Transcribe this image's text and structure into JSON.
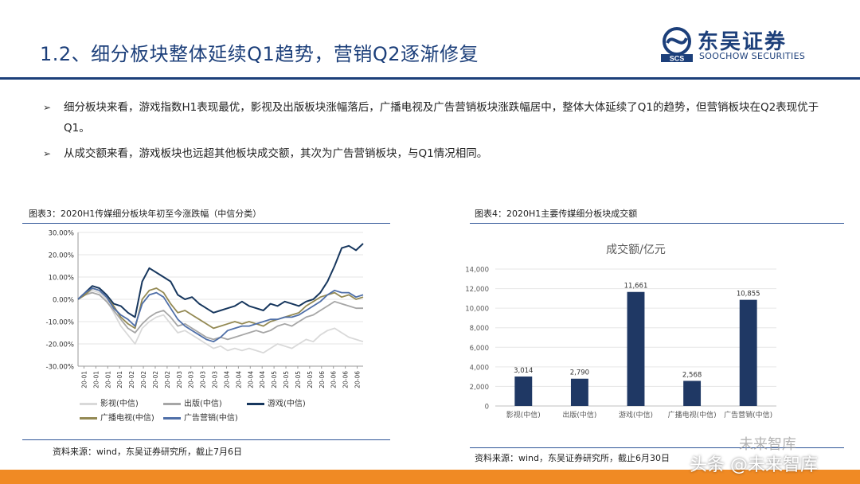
{
  "header": {
    "title": "1.2、细分板块整体延续Q1趋势，营销Q2逐渐修复",
    "logo_cn": "东吴证券",
    "logo_en": "SOOCHOW SECURITIES",
    "logo_mark": "SCS",
    "brand_color": "#1c3f7a"
  },
  "bullets": [
    {
      "icon": "arrow-bullet-icon",
      "text": "细分板块来看，游戏指数H1表现最优，影视及出版板块涨幅落后，广播电视及广告营销板块涨跌幅居中，整体大体延续了Q1的趋势，但营销板块在Q2表现优于Q1。"
    },
    {
      "icon": "arrow-bullet-icon",
      "text": "从成交额来看，游戏板块也远超其他板块成交额，其次为广告营销板块，与Q1情况相同。"
    }
  ],
  "chart_data": [
    {
      "type": "line",
      "caption": "图表3：2020H1传媒细分板块年初至今涨跌幅（中信分类）",
      "ylim": [
        -30,
        30
      ],
      "y_ticks": [
        "30.00%",
        "20.00%",
        "10.00%",
        "0.00%",
        "-10.00%",
        "-20.00%",
        "-30.00%"
      ],
      "x_ticks": [
        "20-01",
        "20-01",
        "20-01",
        "20-01",
        "20-02",
        "20-02",
        "20-02",
        "20-02",
        "20-03",
        "20-03",
        "20-03",
        "20-03",
        "20-04",
        "20-04",
        "20-04",
        "20-04",
        "20-05",
        "20-05",
        "20-05",
        "20-05",
        "20-06",
        "20-06",
        "20-06",
        "20-06"
      ],
      "grid": "horizontal",
      "legend_position": "bottom",
      "series": [
        {
          "name": "影视(中信)",
          "color": "#d9d9d9",
          "values": [
            0,
            2,
            4,
            3,
            0,
            -6,
            -12,
            -16,
            -20,
            -13,
            -10,
            -8,
            -7,
            -11,
            -15,
            -14,
            -16,
            -18,
            -20,
            -22,
            -21,
            -23,
            -22,
            -23,
            -22,
            -23,
            -24,
            -22,
            -20,
            -21,
            -22,
            -20,
            -18,
            -19,
            -16,
            -14,
            -13,
            -15,
            -17,
            -18,
            -19
          ]
        },
        {
          "name": "出版(中信)",
          "color": "#a6a6a6",
          "values": [
            0,
            2,
            3,
            2,
            -1,
            -5,
            -9,
            -13,
            -15,
            -11,
            -8,
            -6,
            -5,
            -8,
            -12,
            -11,
            -13,
            -15,
            -17,
            -18,
            -17,
            -18,
            -17,
            -16,
            -15,
            -14,
            -15,
            -14,
            -12,
            -11,
            -12,
            -10,
            -8,
            -7,
            -5,
            -3,
            -1,
            -2,
            -3,
            -4,
            -4
          ]
        },
        {
          "name": "游戏(中信)",
          "color": "#17375e",
          "values": [
            0,
            3,
            6,
            5,
            2,
            -2,
            -3,
            -6,
            -8,
            8,
            14,
            12,
            10,
            8,
            2,
            0,
            1,
            -2,
            -4,
            -6,
            -5,
            -4,
            -3,
            -1,
            -3,
            -4,
            -5,
            -2,
            -3,
            -1,
            -2,
            -3,
            -1,
            0,
            3,
            8,
            15,
            23,
            24,
            22,
            25
          ]
        },
        {
          "name": "广播电视(中信)",
          "color": "#938953",
          "values": [
            0,
            2,
            5,
            4,
            1,
            -3,
            -8,
            -11,
            -13,
            0,
            4,
            5,
            3,
            -2,
            -6,
            -5,
            -7,
            -9,
            -11,
            -13,
            -12,
            -11,
            -10,
            -11,
            -10,
            -11,
            -12,
            -10,
            -9,
            -8,
            -7,
            -6,
            -3,
            -1,
            1,
            2,
            3,
            1,
            2,
            0,
            1
          ]
        },
        {
          "name": "广告营销(中信)",
          "color": "#4f6fa8",
          "values": [
            0,
            3,
            5,
            4,
            1,
            -4,
            -7,
            -9,
            -12,
            -2,
            2,
            3,
            1,
            -4,
            -9,
            -12,
            -14,
            -16,
            -18,
            -19,
            -17,
            -14,
            -13,
            -12,
            -12,
            -11,
            -10,
            -9,
            -9,
            -8,
            -8,
            -7,
            -5,
            -3,
            -1,
            2,
            4,
            3,
            3,
            1,
            2
          ]
        }
      ]
    },
    {
      "type": "bar",
      "caption": "图表4：2020H1主要传媒细分板块成交额",
      "title": "成交额/亿元",
      "categories": [
        "影视(中信)",
        "出版(中信)",
        "游戏(中信)",
        "广播电视(中信)",
        "广告营销(中信)"
      ],
      "values": [
        3014,
        2790,
        11661,
        2568,
        10855
      ],
      "value_labels": [
        "3,014",
        "2,790",
        "11,661",
        "2,568",
        "10,855"
      ],
      "ylim": [
        0,
        14000
      ],
      "y_ticks": [
        "14,000",
        "12,000",
        "10,000",
        "8,000",
        "6,000",
        "4,000",
        "2,000",
        "0"
      ],
      "bar_color": "#1f3864",
      "grid": "horizontal"
    }
  ],
  "sources": {
    "left": "资料来源：wind，东吴证券研究所，截止7月6日",
    "right": "资料来源：wind，东吴证券研究所，截止6月30日"
  },
  "watermark": {
    "text1": "头条 @未来智库",
    "text2": "未来智库"
  }
}
